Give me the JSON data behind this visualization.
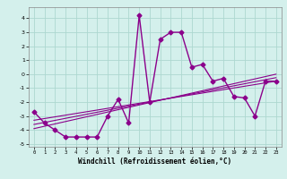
{
  "title": "",
  "xlabel": "Windchill (Refroidissement éolien,°C)",
  "ylabel": "",
  "background_color": "#d4f0ec",
  "grid_color": "#add8d0",
  "line_color": "#8b008b",
  "x_data": [
    0,
    1,
    2,
    3,
    4,
    5,
    6,
    7,
    8,
    9,
    10,
    11,
    12,
    13,
    14,
    15,
    16,
    17,
    18,
    19,
    20,
    21,
    22,
    23
  ],
  "y_main": [
    -2.7,
    -3.5,
    -4.0,
    -4.5,
    -4.5,
    -4.5,
    -4.5,
    -3.0,
    -1.8,
    -3.5,
    4.2,
    -2.0,
    2.5,
    3.0,
    3.0,
    0.5,
    0.7,
    -0.5,
    -0.3,
    -1.6,
    -1.7,
    -3.0,
    -0.5,
    -0.5
  ],
  "ylim": [
    -5.2,
    4.8
  ],
  "xlim": [
    -0.5,
    23.5
  ],
  "yticks": [
    -5,
    -4,
    -3,
    -2,
    -1,
    0,
    1,
    2,
    3,
    4
  ],
  "xticks": [
    0,
    1,
    2,
    3,
    4,
    5,
    6,
    7,
    8,
    9,
    10,
    11,
    12,
    13,
    14,
    15,
    16,
    17,
    18,
    19,
    20,
    21,
    22,
    23
  ],
  "reg_line_x": [
    0,
    23
  ],
  "reg_line1_y": [
    -3.3,
    -0.5
  ],
  "reg_line2_y": [
    -3.6,
    -0.25
  ],
  "reg_line3_y": [
    -3.9,
    0.0
  ],
  "marker": "D",
  "markersize": 2.5,
  "linewidth": 1.0
}
